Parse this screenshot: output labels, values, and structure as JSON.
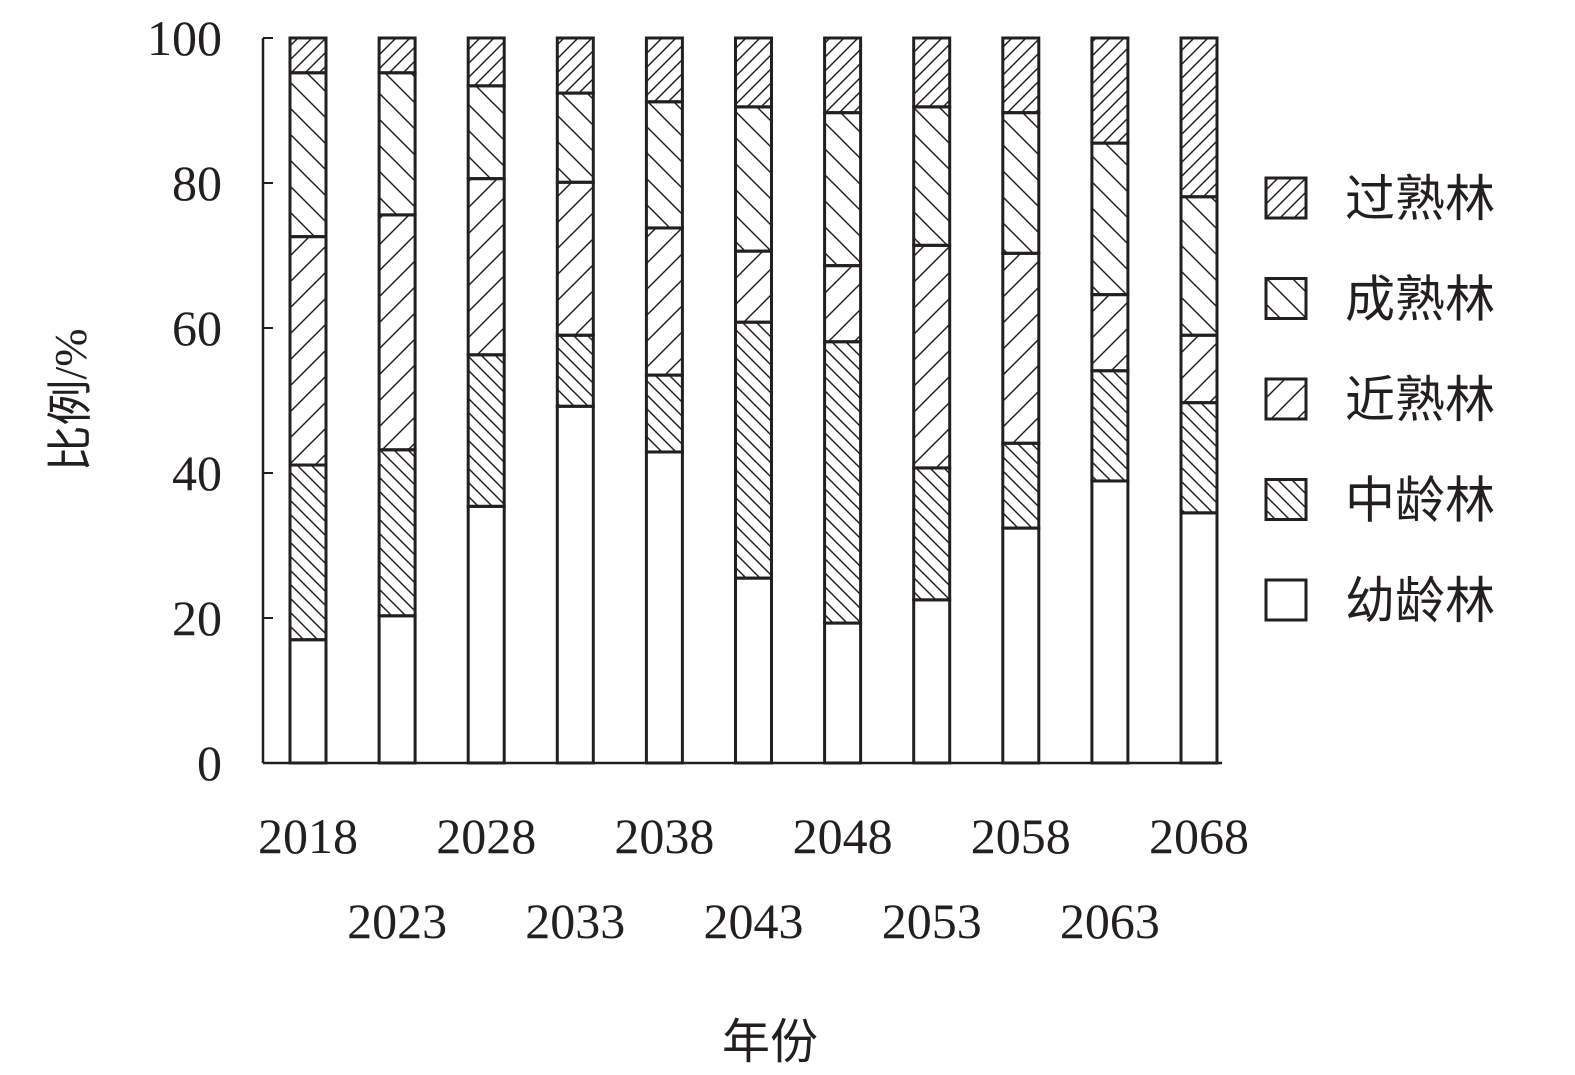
{
  "chart_data": {
    "type": "bar",
    "stacked": true,
    "xlabel": "年份",
    "ylabel": "比例/%",
    "ylim": [
      0,
      100
    ],
    "yticks": [
      "0",
      "20",
      "40",
      "60",
      "80",
      "100"
    ],
    "categories": [
      "2018",
      "2023",
      "2028",
      "2033",
      "2038",
      "2043",
      "2048",
      "2053",
      "2058",
      "2063",
      "2068"
    ],
    "series": [
      {
        "name": "幼龄林",
        "pattern": "none",
        "values": [
          17.0,
          20.3,
          35.4,
          49.2,
          42.9,
          25.5,
          19.3,
          22.5,
          32.4,
          38.9,
          34.5
        ]
      },
      {
        "name": "中龄林",
        "pattern": "backslash-dense",
        "values": [
          24.1,
          22.9,
          20.9,
          9.8,
          10.6,
          35.3,
          38.8,
          18.2,
          11.7,
          15.2,
          15.2
        ]
      },
      {
        "name": "近熟林",
        "pattern": "slash-sparse",
        "values": [
          31.5,
          32.4,
          24.3,
          21.1,
          20.3,
          9.8,
          10.5,
          30.7,
          26.2,
          10.5,
          9.3
        ]
      },
      {
        "name": "成熟林",
        "pattern": "backslash-sparse",
        "values": [
          22.6,
          19.6,
          12.8,
          12.3,
          17.4,
          19.9,
          21.1,
          19.1,
          19.4,
          20.9,
          19.1
        ]
      },
      {
        "name": "过熟林",
        "pattern": "slash-dense",
        "values": [
          4.8,
          4.8,
          6.6,
          7.6,
          8.8,
          9.5,
          10.3,
          9.5,
          10.3,
          14.5,
          21.9
        ]
      }
    ],
    "legend_order": [
      "过熟林",
      "成熟林",
      "近熟林",
      "中龄林",
      "幼龄林"
    ],
    "legend_position": "right",
    "grid": false,
    "colors": {
      "stroke": "#231f20",
      "fill": "#ffffff"
    }
  }
}
